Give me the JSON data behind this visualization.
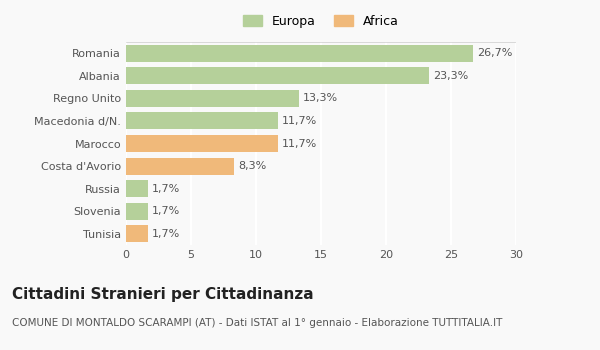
{
  "categories": [
    "Romania",
    "Albania",
    "Regno Unito",
    "Macedonia d/N.",
    "Marocco",
    "Costa d'Avorio",
    "Russia",
    "Slovenia",
    "Tunisia"
  ],
  "values": [
    26.7,
    23.3,
    13.3,
    11.7,
    11.7,
    8.3,
    1.7,
    1.7,
    1.7
  ],
  "labels": [
    "26,7%",
    "23,3%",
    "13,3%",
    "11,7%",
    "11,7%",
    "8,3%",
    "1,7%",
    "1,7%",
    "1,7%"
  ],
  "colors": [
    "#b5d09a",
    "#b5d09a",
    "#b5d09a",
    "#b5d09a",
    "#f0b97a",
    "#f0b97a",
    "#b5d09a",
    "#b5d09a",
    "#f0b97a"
  ],
  "europa_color": "#b5d09a",
  "africa_color": "#f0b97a",
  "xlim": [
    0,
    30
  ],
  "xticks": [
    0,
    5,
    10,
    15,
    20,
    25,
    30
  ],
  "title": "Cittadini Stranieri per Cittadinanza",
  "subtitle": "COMUNE DI MONTALDO SCARAMPI (AT) - Dati ISTAT al 1° gennaio - Elaborazione TUTTITALIA.IT",
  "background_color": "#f9f9f9",
  "grid_color": "#ffffff",
  "bar_height": 0.75,
  "label_fontsize": 8,
  "tick_fontsize": 8,
  "title_fontsize": 11,
  "subtitle_fontsize": 7.5
}
